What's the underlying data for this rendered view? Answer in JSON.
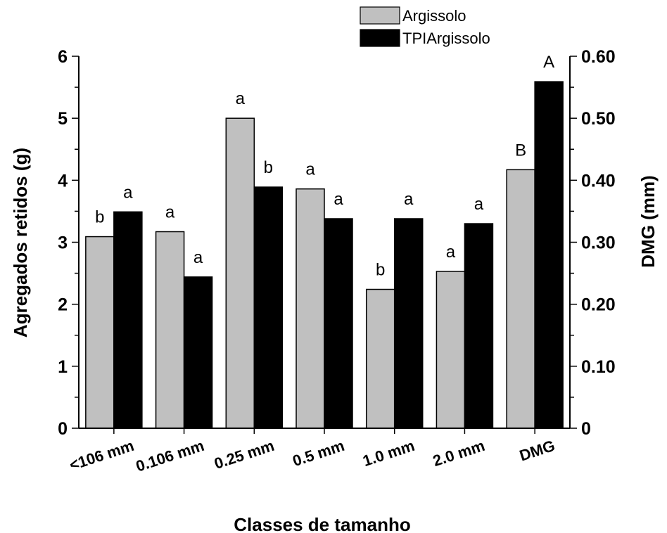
{
  "chart_data": {
    "type": "bar",
    "categories": [
      "<106 mm",
      "0.106 mm",
      "0.25 mm",
      "0.5 mm",
      "1.0 mm",
      "2.0 mm",
      "DMG"
    ],
    "series": [
      {
        "name": "Argissolo",
        "color": "#c0c0c0",
        "values": [
          3.09,
          3.17,
          5.0,
          3.86,
          2.24,
          2.53,
          4.17
        ],
        "letters": [
          "b",
          "a",
          "a",
          "a",
          "b",
          "a",
          "B"
        ]
      },
      {
        "name": "TPIArgissolo",
        "color": "#000000",
        "values": [
          3.49,
          2.44,
          3.89,
          3.38,
          3.38,
          3.3,
          5.59
        ],
        "letters": [
          "a",
          "a",
          "b",
          "a",
          "a",
          "a",
          "A"
        ]
      }
    ],
    "xlabel": "Classes de tamanho",
    "ylabel": "Agregados retidos (g)",
    "ylabel_right": "DMG (mm)",
    "ylim": [
      0,
      6
    ],
    "ylim_right": [
      0,
      0.6
    ],
    "yticks": [
      "0",
      "1",
      "2",
      "3",
      "4",
      "5",
      "6"
    ],
    "yticks_right": [
      "0",
      "0.10",
      "0.20",
      "0.30",
      "0.40",
      "0.50",
      "0.60"
    ],
    "legend": "top-center",
    "grid": false
  }
}
